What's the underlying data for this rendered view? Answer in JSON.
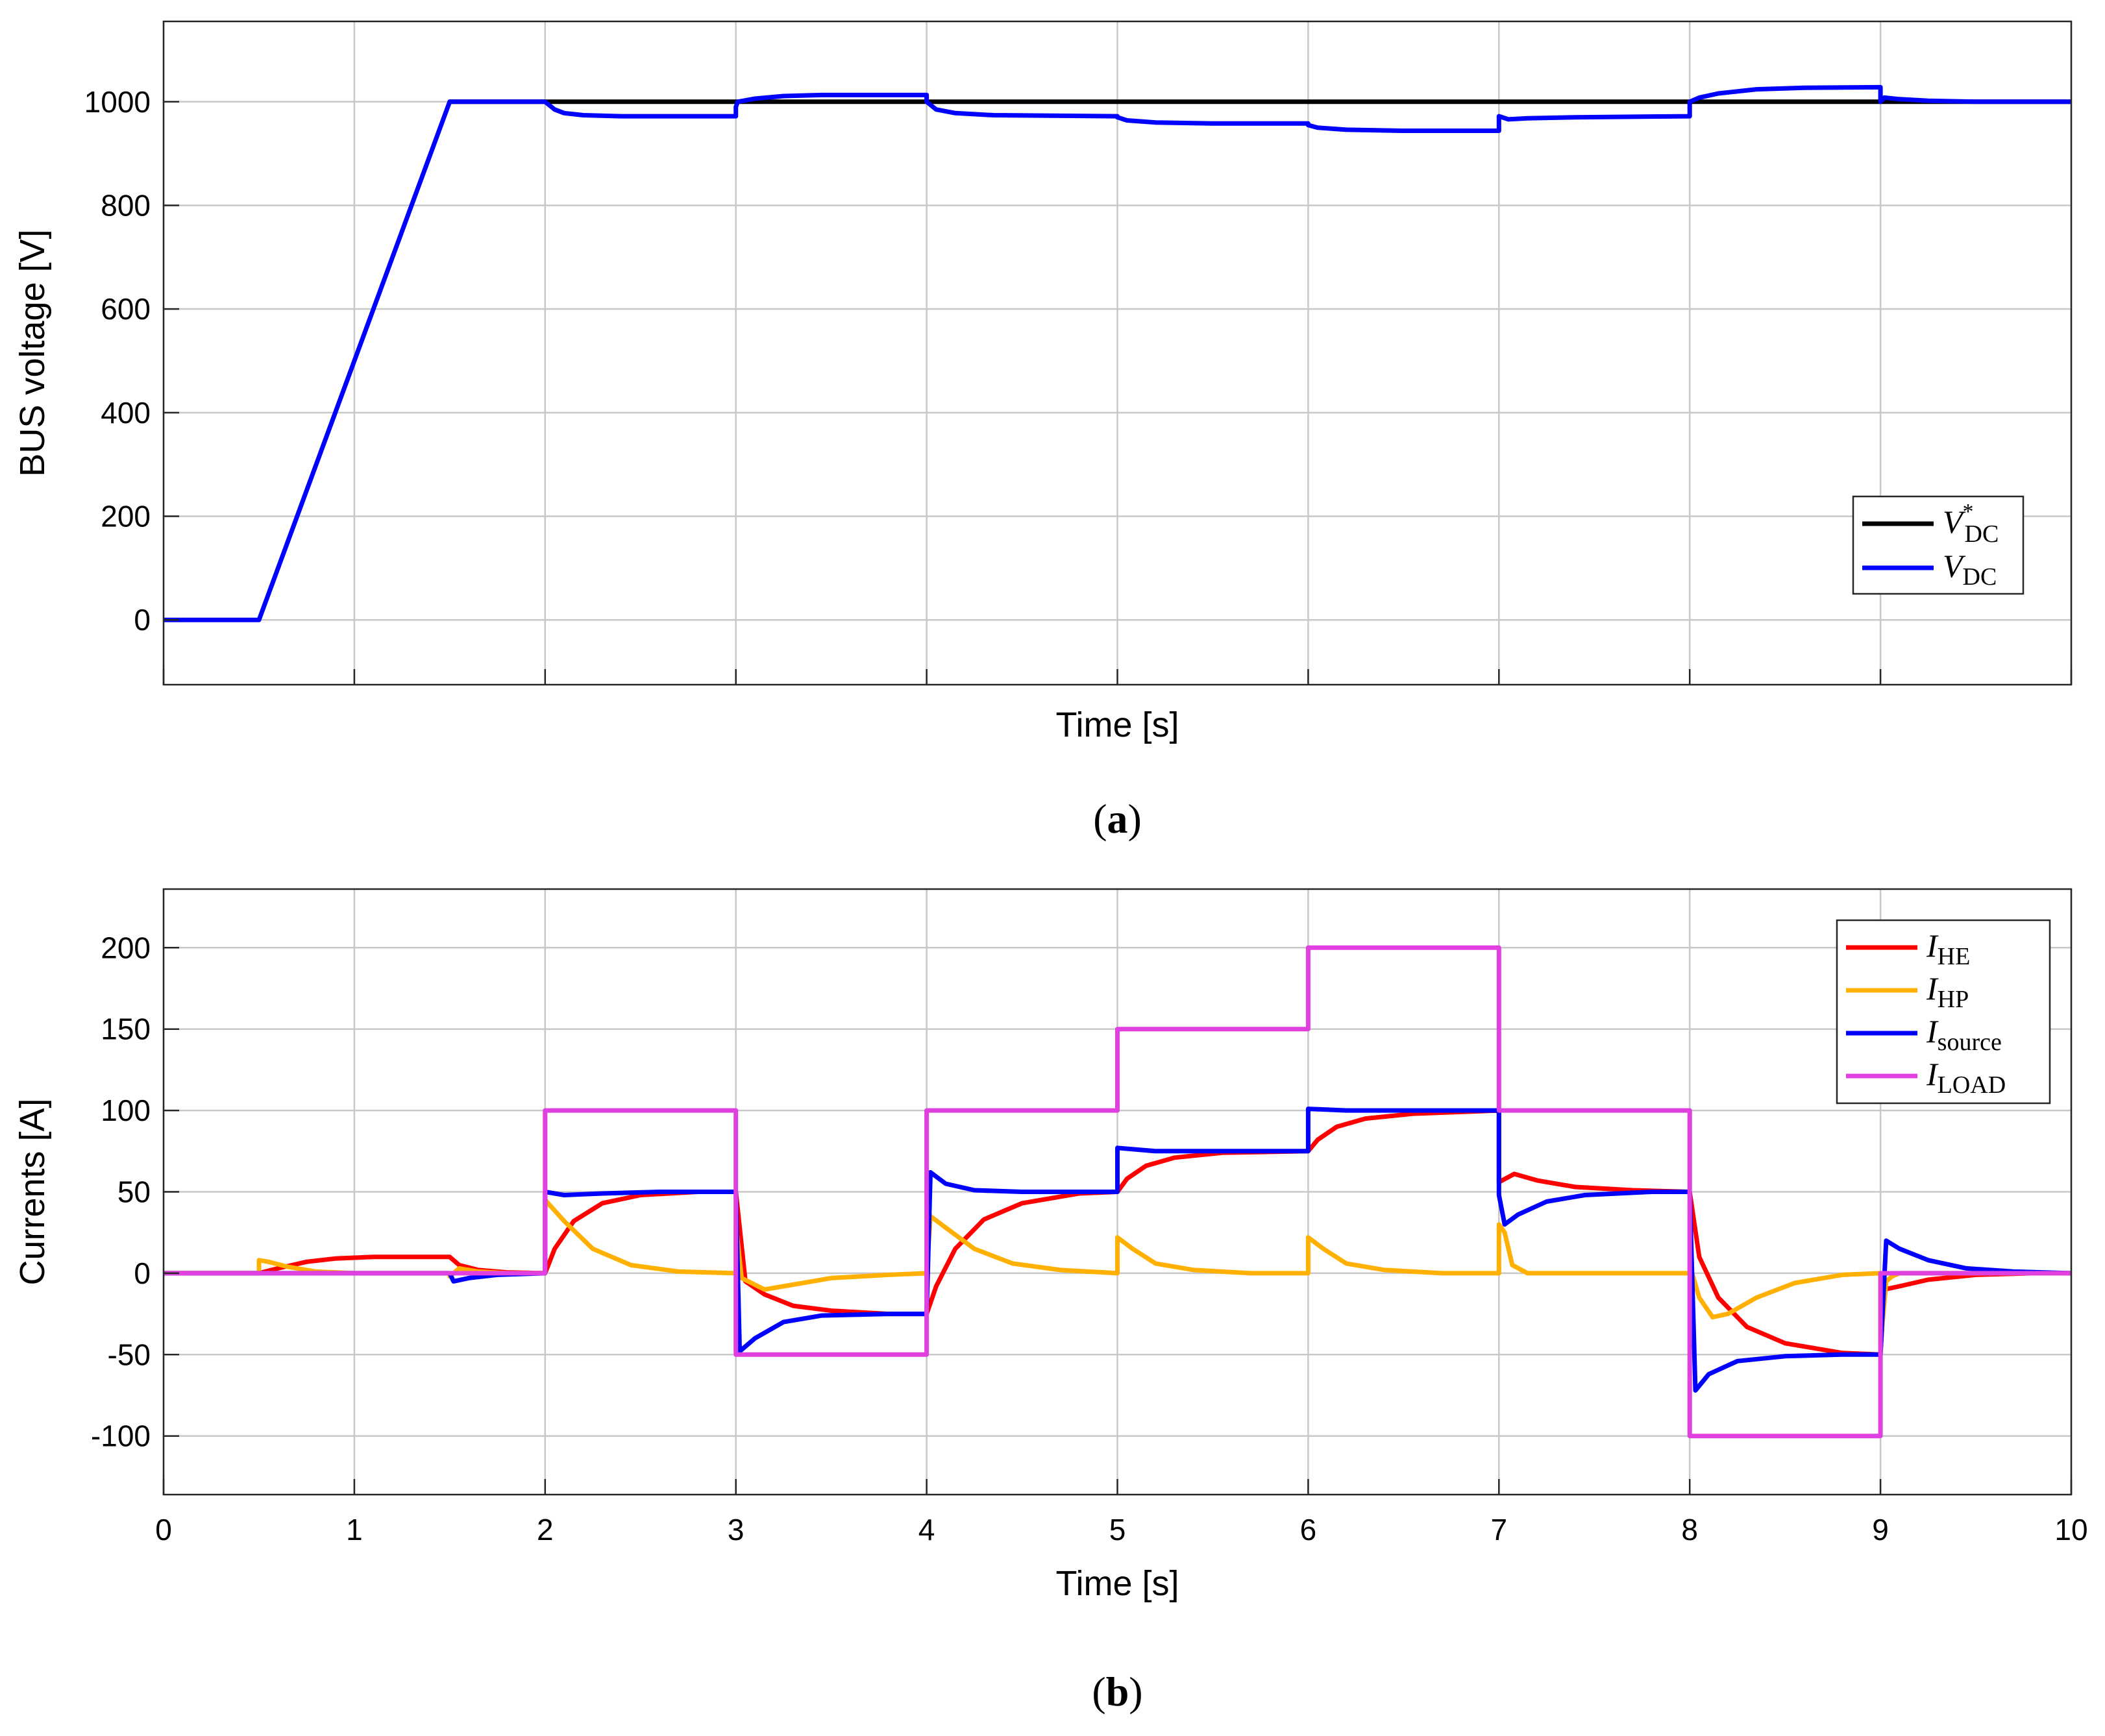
{
  "chart_data": [
    {
      "panel_label": "a",
      "type": "line",
      "xlabel": "Time [s]",
      "ylabel": "BUS voltage [V]",
      "xlim": [
        0,
        10
      ],
      "ylim": [
        -125,
        1155
      ],
      "xticks": [
        0,
        1,
        2,
        3,
        4,
        5,
        6,
        7,
        8,
        9,
        10
      ],
      "yticks": [
        0,
        200,
        400,
        600,
        800,
        1000
      ],
      "show_x_tick_labels": false,
      "grid": true,
      "legend_position": "right",
      "legend": [
        {
          "symbol": "V",
          "subscript": "DC",
          "superscript": "*",
          "color": "#000000"
        },
        {
          "symbol": "V",
          "subscript": "DC",
          "superscript": "",
          "color": "#0000ff"
        }
      ],
      "series": [
        {
          "name": "V*DC",
          "color": "#000000",
          "points": [
            [
              1.5,
              1000
            ],
            [
              10,
              1000
            ]
          ]
        },
        {
          "name": "VDC",
          "color": "#0000ff",
          "points": [
            [
              0,
              0
            ],
            [
              0.5,
              0
            ],
            [
              1.5,
              1000
            ],
            [
              2.0,
              1000
            ],
            [
              2.05,
              985
            ],
            [
              2.1,
              978
            ],
            [
              2.2,
              974
            ],
            [
              2.4,
              972
            ],
            [
              3.0,
              972
            ],
            [
              3.0,
              990
            ],
            [
              3.01,
              1000
            ],
            [
              3.1,
              1006
            ],
            [
              3.25,
              1011
            ],
            [
              3.45,
              1013
            ],
            [
              4.0,
              1013
            ],
            [
              4.0,
              1000
            ],
            [
              4.05,
              985
            ],
            [
              4.15,
              978
            ],
            [
              4.35,
              974
            ],
            [
              5.0,
              972
            ],
            [
              5.0,
              970
            ],
            [
              5.05,
              964
            ],
            [
              5.2,
              960
            ],
            [
              5.5,
              958
            ],
            [
              6.0,
              958
            ],
            [
              6.0,
              955
            ],
            [
              6.05,
              950
            ],
            [
              6.2,
              946
            ],
            [
              6.5,
              944
            ],
            [
              7.0,
              944
            ],
            [
              7.0,
              972
            ],
            [
              7.05,
              966
            ],
            [
              7.15,
              968
            ],
            [
              7.4,
              970
            ],
            [
              8.0,
              972
            ],
            [
              8.0,
              1000
            ],
            [
              8.05,
              1008
            ],
            [
              8.15,
              1016
            ],
            [
              8.35,
              1024
            ],
            [
              8.6,
              1027
            ],
            [
              9.0,
              1028
            ],
            [
              9.0,
              1000
            ],
            [
              9.02,
              1008
            ],
            [
              9.1,
              1005
            ],
            [
              9.25,
              1002
            ],
            [
              9.5,
              1000
            ],
            [
              10,
              1000
            ]
          ]
        }
      ]
    },
    {
      "panel_label": "b",
      "type": "line",
      "xlabel": "Time [s]",
      "ylabel": "Currents [A]",
      "xlim": [
        0,
        10
      ],
      "ylim": [
        -136,
        236
      ],
      "xticks": [
        0,
        1,
        2,
        3,
        4,
        5,
        6,
        7,
        8,
        9,
        10
      ],
      "yticks": [
        -100,
        -50,
        0,
        50,
        100,
        150,
        200
      ],
      "show_x_tick_labels": true,
      "grid": true,
      "legend_position": "top-right",
      "legend": [
        {
          "symbol": "I",
          "subscript": "HE",
          "superscript": "",
          "color": "#ff0000"
        },
        {
          "symbol": "I",
          "subscript": "HP",
          "superscript": "",
          "color": "#ffb000"
        },
        {
          "symbol": "I",
          "subscript": "source",
          "superscript": "",
          "color": "#0000ff"
        },
        {
          "symbol": "I",
          "subscript": "LOAD",
          "superscript": "",
          "color": "#e040e0"
        }
      ],
      "series": [
        {
          "name": "IHE",
          "color": "#ff0000",
          "points": [
            [
              0,
              0
            ],
            [
              0.5,
              0
            ],
            [
              0.6,
              3
            ],
            [
              0.75,
              7
            ],
            [
              0.9,
              9
            ],
            [
              1.1,
              10
            ],
            [
              1.5,
              10
            ],
            [
              1.55,
              5
            ],
            [
              1.65,
              2
            ],
            [
              1.8,
              0.5
            ],
            [
              2.0,
              0
            ],
            [
              2.05,
              15
            ],
            [
              2.15,
              32
            ],
            [
              2.3,
              43
            ],
            [
              2.5,
              48
            ],
            [
              2.8,
              50
            ],
            [
              3.0,
              50
            ],
            [
              3.05,
              -5
            ],
            [
              3.15,
              -13
            ],
            [
              3.3,
              -20
            ],
            [
              3.5,
              -23
            ],
            [
              3.8,
              -25
            ],
            [
              4.0,
              -25
            ],
            [
              4.05,
              -8
            ],
            [
              4.15,
              15
            ],
            [
              4.3,
              33
            ],
            [
              4.5,
              43
            ],
            [
              4.8,
              49
            ],
            [
              5.0,
              50
            ],
            [
              5.05,
              58
            ],
            [
              5.15,
              66
            ],
            [
              5.3,
              71
            ],
            [
              5.55,
              74
            ],
            [
              6.0,
              75
            ],
            [
              6.05,
              82
            ],
            [
              6.15,
              90
            ],
            [
              6.3,
              95
            ],
            [
              6.55,
              98
            ],
            [
              7.0,
              100
            ],
            [
              7.0,
              56
            ],
            [
              7.08,
              61
            ],
            [
              7.2,
              57
            ],
            [
              7.4,
              53
            ],
            [
              7.7,
              51
            ],
            [
              8.0,
              50
            ],
            [
              8.05,
              10
            ],
            [
              8.15,
              -15
            ],
            [
              8.3,
              -33
            ],
            [
              8.5,
              -43
            ],
            [
              8.8,
              -49
            ],
            [
              9.0,
              -50
            ],
            [
              9.02,
              -10
            ],
            [
              9.1,
              -8
            ],
            [
              9.25,
              -4
            ],
            [
              9.5,
              -1
            ],
            [
              9.8,
              0
            ],
            [
              10,
              0
            ]
          ]
        },
        {
          "name": "IHP",
          "color": "#ffb000",
          "points": [
            [
              0,
              0
            ],
            [
              0.5,
              0
            ],
            [
              0.5,
              8
            ],
            [
              0.55,
              7
            ],
            [
              0.65,
              4
            ],
            [
              0.8,
              1
            ],
            [
              1.0,
              0
            ],
            [
              1.5,
              0
            ],
            [
              1.5,
              -2
            ],
            [
              1.55,
              3
            ],
            [
              1.65,
              1
            ],
            [
              1.8,
              0
            ],
            [
              2.0,
              0
            ],
            [
              2.0,
              45
            ],
            [
              2.1,
              32
            ],
            [
              2.25,
              15
            ],
            [
              2.45,
              5
            ],
            [
              2.7,
              1
            ],
            [
              3.0,
              0
            ],
            [
              3.0,
              30
            ],
            [
              3.03,
              -3
            ],
            [
              3.15,
              -10
            ],
            [
              3.3,
              -7
            ],
            [
              3.5,
              -3
            ],
            [
              3.8,
              -1
            ],
            [
              4.0,
              0
            ],
            [
              4.02,
              35
            ],
            [
              4.1,
              28
            ],
            [
              4.25,
              15
            ],
            [
              4.45,
              6
            ],
            [
              4.7,
              2
            ],
            [
              5.0,
              0
            ],
            [
              5.0,
              22
            ],
            [
              5.08,
              15
            ],
            [
              5.2,
              6
            ],
            [
              5.4,
              2
            ],
            [
              5.7,
              0
            ],
            [
              6.0,
              0
            ],
            [
              6.0,
              22
            ],
            [
              6.08,
              15
            ],
            [
              6.2,
              6
            ],
            [
              6.4,
              2
            ],
            [
              6.7,
              0
            ],
            [
              7.0,
              0
            ],
            [
              7.0,
              30
            ],
            [
              7.03,
              25
            ],
            [
              7.07,
              5
            ],
            [
              7.15,
              0
            ],
            [
              8.0,
              0
            ],
            [
              8.0,
              5
            ],
            [
              8.05,
              -15
            ],
            [
              8.12,
              -27
            ],
            [
              8.2,
              -25
            ],
            [
              8.35,
              -15
            ],
            [
              8.55,
              -6
            ],
            [
              8.8,
              -1
            ],
            [
              9.0,
              0
            ],
            [
              9.0,
              -45
            ],
            [
              9.03,
              -5
            ],
            [
              9.06,
              -2
            ],
            [
              9.1,
              0
            ],
            [
              10,
              0
            ]
          ]
        },
        {
          "name": "Isource",
          "color": "#0000ff",
          "points": [
            [
              0,
              0
            ],
            [
              1.5,
              0
            ],
            [
              1.52,
              -5
            ],
            [
              1.6,
              -3
            ],
            [
              1.75,
              -1
            ],
            [
              2.0,
              0
            ],
            [
              2.0,
              50
            ],
            [
              2.1,
              48
            ],
            [
              2.3,
              49
            ],
            [
              2.6,
              50
            ],
            [
              3.0,
              50
            ],
            [
              3.02,
              -48
            ],
            [
              3.1,
              -40
            ],
            [
              3.25,
              -30
            ],
            [
              3.45,
              -26
            ],
            [
              3.8,
              -25
            ],
            [
              4.0,
              -25
            ],
            [
              4.02,
              62
            ],
            [
              4.1,
              55
            ],
            [
              4.25,
              51
            ],
            [
              4.5,
              50
            ],
            [
              5.0,
              50
            ],
            [
              5.0,
              77
            ],
            [
              5.2,
              75
            ],
            [
              6.0,
              75
            ],
            [
              6.0,
              101
            ],
            [
              6.2,
              100
            ],
            [
              7.0,
              100
            ],
            [
              7.0,
              48
            ],
            [
              7.03,
              30
            ],
            [
              7.1,
              36
            ],
            [
              7.25,
              44
            ],
            [
              7.45,
              48
            ],
            [
              7.8,
              50
            ],
            [
              8.0,
              50
            ],
            [
              8.03,
              -72
            ],
            [
              8.1,
              -62
            ],
            [
              8.25,
              -54
            ],
            [
              8.5,
              -51
            ],
            [
              8.8,
              -50
            ],
            [
              9.0,
              -50
            ],
            [
              9.03,
              20
            ],
            [
              9.1,
              15
            ],
            [
              9.25,
              8
            ],
            [
              9.45,
              3
            ],
            [
              9.7,
              1
            ],
            [
              10,
              0
            ]
          ]
        },
        {
          "name": "ILOAD",
          "color": "#e040e0",
          "points": [
            [
              0,
              0
            ],
            [
              2.0,
              0
            ],
            [
              2.0,
              100
            ],
            [
              3.0,
              100
            ],
            [
              3.0,
              -50
            ],
            [
              4.0,
              -50
            ],
            [
              4.0,
              100
            ],
            [
              5.0,
              100
            ],
            [
              5.0,
              150
            ],
            [
              6.0,
              150
            ],
            [
              6.0,
              200
            ],
            [
              7.0,
              200
            ],
            [
              7.0,
              100
            ],
            [
              8.0,
              100
            ],
            [
              8.0,
              -100
            ],
            [
              9.0,
              -100
            ],
            [
              9.0,
              0
            ],
            [
              10,
              0
            ]
          ]
        }
      ]
    }
  ]
}
